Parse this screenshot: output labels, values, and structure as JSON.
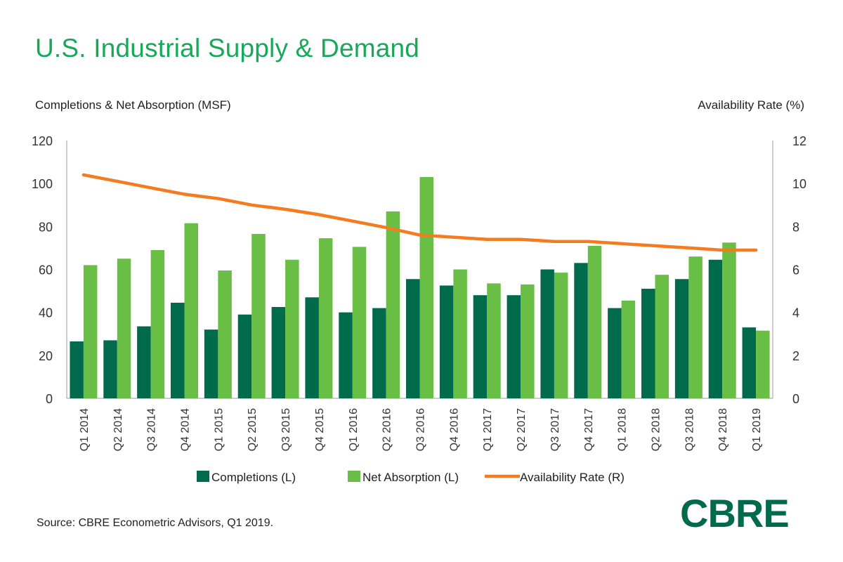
{
  "title": "U.S. Industrial Supply & Demand",
  "source": "Source: CBRE Econometric Advisors, Q1 2019.",
  "logo_text": "CBRE",
  "colors": {
    "completions": "#006a4d",
    "absorption": "#69be45",
    "availability": "#f47b20",
    "title": "#17a85a"
  },
  "chart_data": {
    "type": "bar",
    "left_axis_label": "Completions & Net Absorption (MSF)",
    "right_axis_label": "Availability Rate (%)",
    "ylim_left": [
      0,
      120
    ],
    "ylim_right": [
      0,
      12
    ],
    "yticks_left": [
      "0",
      "20",
      "40",
      "60",
      "80",
      "100",
      "120"
    ],
    "yticks_right": [
      "0",
      "2",
      "4",
      "6",
      "8",
      "10",
      "12"
    ],
    "categories": [
      "Q1 2014",
      "Q2 2014",
      "Q3 2014",
      "Q4 2014",
      "Q1 2015",
      "Q2 2015",
      "Q3 2015",
      "Q4 2015",
      "Q1 2016",
      "Q2 2016",
      "Q3 2016",
      "Q4 2016",
      "Q1 2017",
      "Q2 2017",
      "Q3 2017",
      "Q4 2017",
      "Q1 2018",
      "Q2 2018",
      "Q3 2018",
      "Q4 2018",
      "Q1 2019"
    ],
    "series": [
      {
        "name": "Completions (L)",
        "type": "bar",
        "axis": "left",
        "values": [
          26.5,
          27,
          33.5,
          44.5,
          32,
          39,
          42.5,
          47,
          40,
          42,
          55.5,
          52.5,
          48,
          48,
          60,
          63,
          42,
          51,
          55.5,
          64.5,
          33
        ]
      },
      {
        "name": "Net Absorption (L)",
        "type": "bar",
        "axis": "left",
        "values": [
          62,
          65,
          69,
          81.5,
          59.5,
          76.5,
          64.5,
          74.5,
          70.5,
          87,
          103,
          60,
          53.5,
          53,
          58.5,
          71,
          45.5,
          57.5,
          66,
          72.5,
          31.5
        ]
      },
      {
        "name": "Availability Rate (R)",
        "type": "line",
        "axis": "right",
        "values": [
          10.4,
          10.1,
          9.8,
          9.5,
          9.3,
          9.0,
          8.8,
          8.55,
          8.25,
          7.95,
          7.6,
          7.5,
          7.4,
          7.4,
          7.3,
          7.3,
          7.2,
          7.1,
          7.0,
          6.9,
          6.9
        ]
      }
    ]
  }
}
